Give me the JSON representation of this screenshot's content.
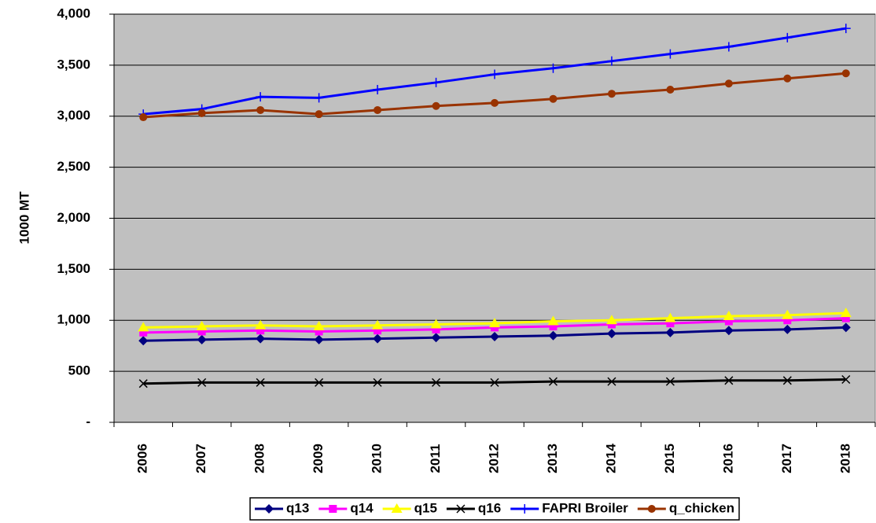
{
  "chart_data": {
    "type": "line",
    "y_label": "1000 MT",
    "categories": [
      "2006",
      "2007",
      "2008",
      "2009",
      "2010",
      "2011",
      "2012",
      "2013",
      "2014",
      "2015",
      "2016",
      "2017",
      "2018"
    ],
    "ylim": [
      0,
      4000
    ],
    "yticks": [
      {
        "value": 0,
        "label": "-"
      },
      500,
      {
        "value": 1000,
        "label": "1,000"
      },
      {
        "value": 1500,
        "label": "1,500"
      },
      {
        "value": 2000,
        "label": "2,000"
      },
      {
        "value": 2500,
        "label": "2,500"
      },
      {
        "value": 3000,
        "label": "3,000"
      },
      {
        "value": 3500,
        "label": "3,500"
      },
      {
        "value": 4000,
        "label": "4,000"
      }
    ],
    "grid": true,
    "plot_background": "#c0c0c0",
    "legend": "bottom",
    "series": [
      {
        "name": "q13",
        "color": "#000080",
        "marker": "diamond",
        "values": [
          800,
          810,
          820,
          810,
          820,
          830,
          840,
          850,
          870,
          880,
          900,
          910,
          930
        ]
      },
      {
        "name": "q14",
        "color": "#ff00ff",
        "marker": "square",
        "values": [
          880,
          890,
          900,
          890,
          900,
          910,
          930,
          940,
          960,
          970,
          990,
          1000,
          1020
        ]
      },
      {
        "name": "q15",
        "color": "#ffff00",
        "marker": "triangle",
        "values": [
          930,
          940,
          950,
          940,
          950,
          960,
          970,
          990,
          1000,
          1020,
          1040,
          1050,
          1070
        ]
      },
      {
        "name": "q16",
        "color": "#000000",
        "marker": "x",
        "values": [
          380,
          390,
          390,
          390,
          390,
          390,
          390,
          400,
          400,
          400,
          410,
          410,
          420
        ]
      },
      {
        "name": "FAPRI Broiler",
        "color": "#0000ff",
        "marker": "plus",
        "values": [
          3020,
          3070,
          3190,
          3180,
          3260,
          3330,
          3410,
          3470,
          3540,
          3610,
          3680,
          3770,
          3860
        ]
      },
      {
        "name": "q_chicken",
        "color": "#993300",
        "marker": "circle",
        "values": [
          2990,
          3030,
          3060,
          3020,
          3060,
          3100,
          3130,
          3170,
          3220,
          3260,
          3320,
          3370,
          3420
        ]
      }
    ]
  }
}
